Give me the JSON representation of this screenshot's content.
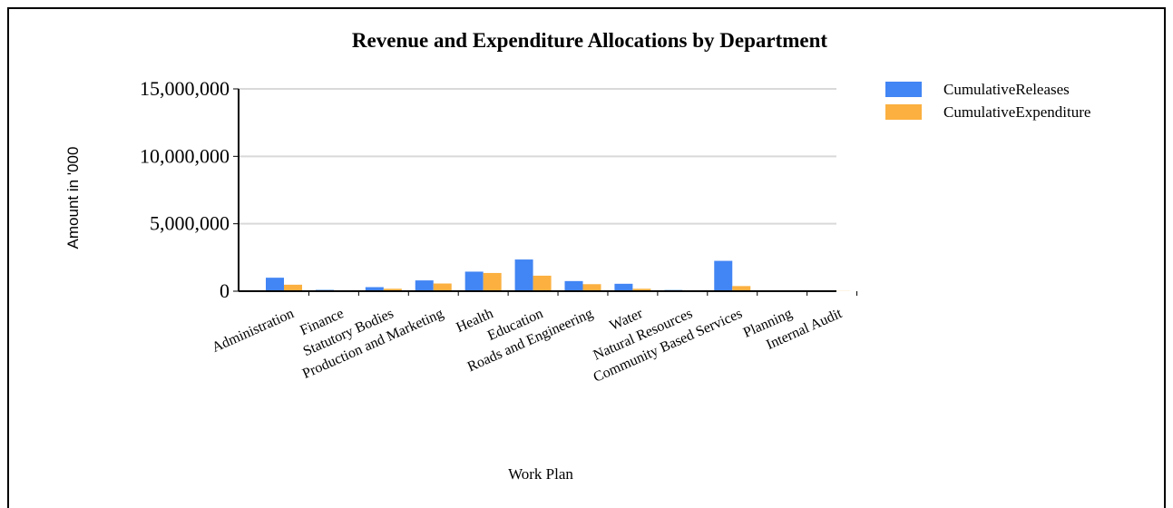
{
  "chart_data": {
    "type": "bar",
    "title": "Revenue and Expenditure Allocations by Department",
    "xlabel": "Work Plan",
    "ylabel": "Amount in '000",
    "ylim": [
      0,
      15000000
    ],
    "yticks": [
      0,
      5000000,
      10000000,
      15000000
    ],
    "ytick_labels": [
      "0",
      "5,000,000",
      "10,000,000",
      "15,000,000"
    ],
    "grid": true,
    "legend_position": "top-right",
    "categories": [
      "Administration",
      "Finance",
      "Statutory Bodies",
      "Production and Marketing",
      "Health",
      "Education",
      "Roads and Engineering",
      "Water",
      "Natural Resources",
      "Community Based Services",
      "Planning",
      "Internal Audit"
    ],
    "series": [
      {
        "name": "CumulativeReleases",
        "color": "#4285f4",
        "values": [
          1000000,
          100000,
          300000,
          800000,
          1450000,
          2350000,
          750000,
          550000,
          90000,
          2250000,
          30000,
          20000
        ]
      },
      {
        "name": "CumulativeExpenditure",
        "color": "#fbb040",
        "values": [
          480000,
          40000,
          180000,
          570000,
          1350000,
          1150000,
          520000,
          180000,
          40000,
          380000,
          20000,
          10000
        ]
      }
    ]
  }
}
